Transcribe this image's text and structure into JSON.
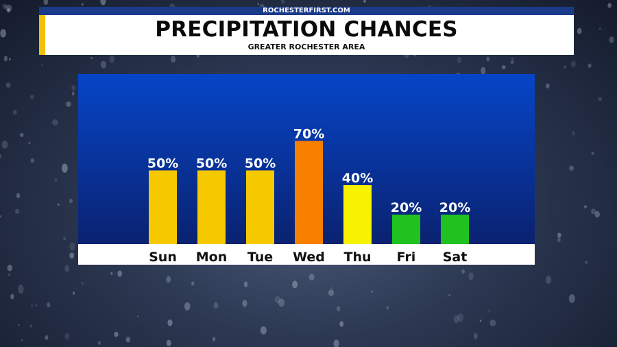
{
  "header": {
    "site": "ROCHESTERFIRST.COM",
    "title": "PRECIPITATION CHANCES",
    "subtitle": "GREATER ROCHESTER AREA"
  },
  "colors": {
    "panel_top": "#0645c8",
    "panel_bottom": "#0a2270",
    "axis_band": "#ffffff",
    "accent": "#f2c200"
  },
  "chart_data": {
    "type": "bar",
    "title": "PRECIPITATION CHANCES",
    "subtitle": "GREATER ROCHESTER AREA",
    "categories": [
      "Sun",
      "Mon",
      "Tue",
      "Wed",
      "Thu",
      "Fri",
      "Sat"
    ],
    "values": [
      50,
      50,
      50,
      70,
      40,
      20,
      20
    ],
    "value_labels": [
      "50%",
      "50%",
      "50%",
      "70%",
      "40%",
      "20%",
      "20%"
    ],
    "bar_colors": [
      "#f5c800",
      "#f5c800",
      "#f5c800",
      "#f77f00",
      "#f7f200",
      "#1fc21f",
      "#1fc21f"
    ],
    "ylim": [
      0,
      100
    ],
    "grid": false,
    "legend": "none"
  }
}
